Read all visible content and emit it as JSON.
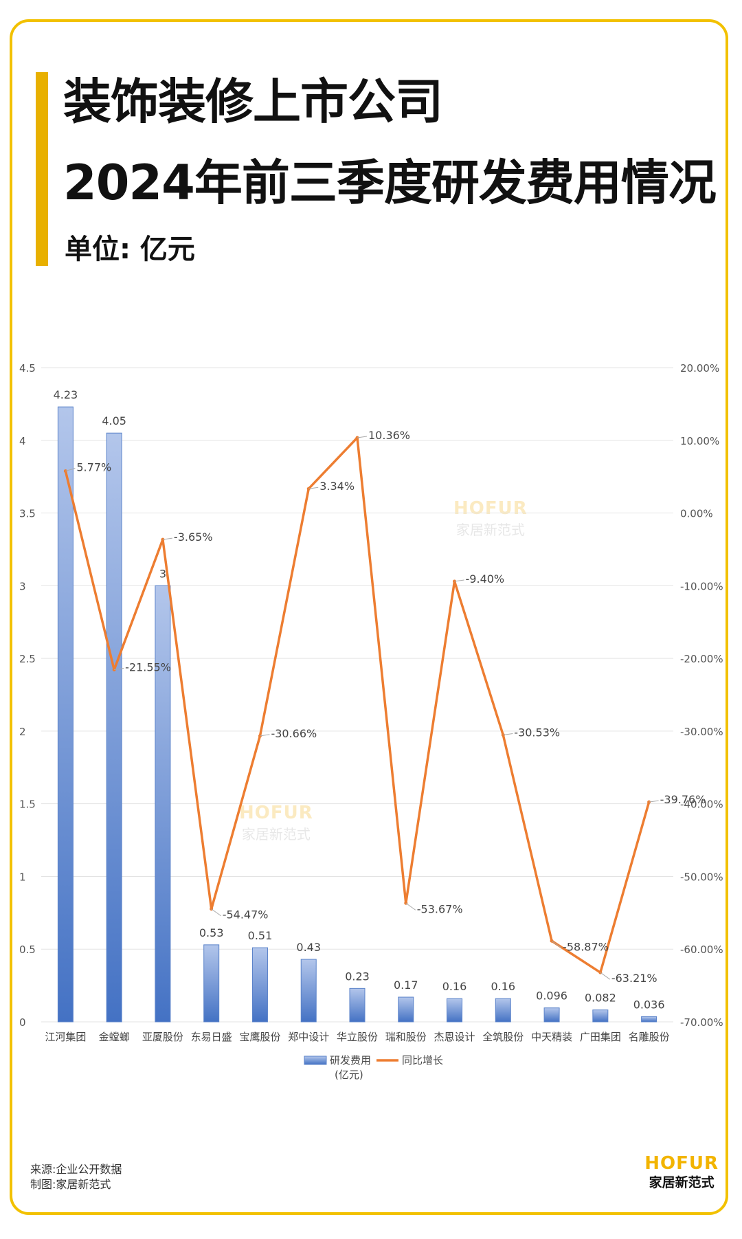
{
  "header": {
    "title_line1": "装饰装修上市公司",
    "title_line2": "2024年前三季度研发费用情况",
    "unit": "单位: 亿元"
  },
  "footer": {
    "source": "来源:企业公开数据",
    "made_by": "制图:家居新范式",
    "brand_en": "HOFUR",
    "brand_cn": "家居新范式"
  },
  "watermark": {
    "en": "HOFUR",
    "cn": "家居新范式"
  },
  "colors": {
    "accent": "#f2c100",
    "bar": "#4472c4",
    "line": "#ed7d31"
  },
  "chart_data": {
    "type": "bar",
    "categories": [
      "江河集团",
      "金螳螂",
      "亚厦股份",
      "东易日盛",
      "宝鹰股份",
      "郑中设计",
      "华立股份",
      "瑞和股份",
      "杰恩设计",
      "全筑股份",
      "中天精装",
      "广田集团",
      "名雕股份"
    ],
    "series": [
      {
        "name": "研发费用(亿元)",
        "type": "bar",
        "axis": "left",
        "values": [
          4.23,
          4.05,
          3,
          0.53,
          0.51,
          0.43,
          0.23,
          0.17,
          0.16,
          0.16,
          0.096,
          0.082,
          0.036
        ],
        "labels": [
          "4.23",
          "4.05",
          "3",
          "0.53",
          "0.51",
          "0.43",
          "0.23",
          "0.17",
          "0.16",
          "0.16",
          "0.096",
          "0.082",
          "0.036"
        ]
      },
      {
        "name": "同比增长",
        "type": "line",
        "axis": "right",
        "values": [
          5.77,
          -21.55,
          -3.65,
          -54.47,
          -30.66,
          3.34,
          10.36,
          -53.67,
          -9.4,
          -30.53,
          -58.87,
          -63.21,
          -39.76
        ],
        "labels": [
          "5.77%",
          "-21.55%",
          "-3.65%",
          "-54.47%",
          "-30.66%",
          "3.34%",
          "10.36%",
          "-53.67%",
          "-9.40%",
          "-30.53%",
          "-58.87%",
          "-63.21%",
          "-39.76%"
        ]
      }
    ],
    "y_left": {
      "range": [
        0,
        4.5
      ],
      "ticks": [
        "0",
        "0.5",
        "1",
        "1.5",
        "2",
        "2.5",
        "3",
        "3.5",
        "4",
        "4.5"
      ]
    },
    "y_right": {
      "range": [
        -70,
        20
      ],
      "ticks": [
        "-70.00%",
        "-60.00%",
        "-50.00%",
        "-40.00%",
        "-30.00%",
        "-20.00%",
        "-10.00%",
        "0.00%",
        "10.00%",
        "20.00%"
      ]
    },
    "legend": {
      "bar_label_line1": "研发费用",
      "bar_label_line2": "(亿元)",
      "line_label": "同比增长"
    },
    "grid": true,
    "legend_position": "bottom"
  }
}
